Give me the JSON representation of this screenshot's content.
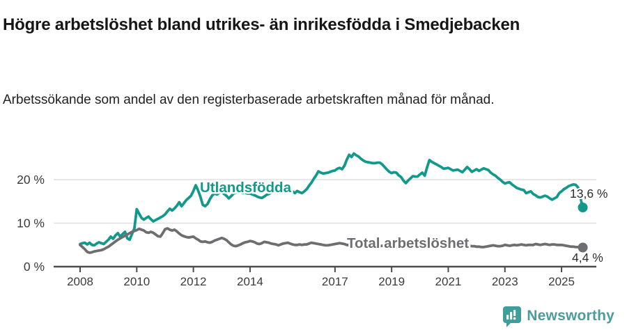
{
  "header": {
    "title": "Högre arbetslöshet bland utrikes- än inrikesfödda i Smedjebacken",
    "subtitle": "Arbetssökande som andel av den registerbaserade arbetskraften månad för månad."
  },
  "chart_data": {
    "type": "line",
    "title": "Högre arbetslöshet bland utrikes- än inrikesfödda i Smedjebacken",
    "subtitle": "Arbetssökande som andel av den registerbaserade arbetskraften månad för månad.",
    "x_unit": "month",
    "x_start": "2008-01",
    "x_end": "2025-10",
    "grid": "horizontal only",
    "legend_position": "inline labels on lines",
    "x_axis": {
      "tick_years": [
        2008,
        2010,
        2012,
        2014,
        2017,
        2019,
        2021,
        2023,
        2025
      ],
      "tick_labels": [
        "2008",
        "2010",
        "2012",
        "2014",
        "2017",
        "2019",
        "2021",
        "2023",
        "2025"
      ]
    },
    "y_axis": {
      "unit": "%",
      "ylim": [
        0,
        27.5
      ],
      "tick_values": [
        0,
        10,
        20
      ],
      "tick_labels": [
        "0 %",
        "10 %",
        "20 %"
      ],
      "gridline_values": [
        10,
        20
      ]
    },
    "series": [
      {
        "name": "Utlandsfödda",
        "color": "#12998c",
        "end_label": "13,6 %",
        "end_value": 13.6,
        "values": [
          5.2,
          5.4,
          5.5,
          5.1,
          5.5,
          5.0,
          4.9,
          5.3,
          5.6,
          5.4,
          5.2,
          5.7,
          6.2,
          6.9,
          6.4,
          7.2,
          7.7,
          6.9,
          7.5,
          8.0,
          6.5,
          6.2,
          7.5,
          8.8,
          13.2,
          12.2,
          11.2,
          10.8,
          11.2,
          11.5,
          10.9,
          10.4,
          10.7,
          11.0,
          11.3,
          11.6,
          12.0,
          12.7,
          13.3,
          12.9,
          13.4,
          14.0,
          14.8,
          13.9,
          14.6,
          15.3,
          15.8,
          16.3,
          17.4,
          18.7,
          17.5,
          16.0,
          14.2,
          13.9,
          14.4,
          15.5,
          16.4,
          16.8,
          16.6,
          17.0,
          17.1,
          16.7,
          16.3,
          15.7,
          16.2,
          16.8,
          17.0,
          17.3,
          17.1,
          16.9,
          17.0,
          16.8,
          16.8,
          16.6,
          16.4,
          16.1,
          15.9,
          15.8,
          16.1,
          16.5,
          16.7,
          17.0,
          17.1,
          17.2,
          17.3,
          17.6,
          17.9,
          17.5,
          17.2,
          17.6,
          17.3,
          16.9,
          17.4,
          17.1,
          16.9,
          17.3,
          17.8,
          18.6,
          19.3,
          20.2,
          21.0,
          21.9,
          21.6,
          21.4,
          21.5,
          21.6,
          21.8,
          22.0,
          22.1,
          22.5,
          22.7,
          22.4,
          23.2,
          24.6,
          25.7,
          25.2,
          26.0,
          25.6,
          25.3,
          24.8,
          24.4,
          24.1,
          24.0,
          23.9,
          23.8,
          23.8,
          23.9,
          23.9,
          23.5,
          22.9,
          22.3,
          21.8,
          21.5,
          21.7,
          21.6,
          21.0,
          20.6,
          19.8,
          19.2,
          19.8,
          20.3,
          20.8,
          20.7,
          20.7,
          21.2,
          21.6,
          20.9,
          22.8,
          24.5,
          24.1,
          23.8,
          23.5,
          23.2,
          22.9,
          22.5,
          22.6,
          22.7,
          22.4,
          22.1,
          22.2,
          22.3,
          22.0,
          21.7,
          22.3,
          22.9,
          22.4,
          21.8,
          22.1,
          22.4,
          22.0,
          22.3,
          22.6,
          22.4,
          22.2,
          21.6,
          21.2,
          20.9,
          20.4,
          20.0,
          19.5,
          19.1,
          19.3,
          19.4,
          18.9,
          18.5,
          18.1,
          17.9,
          17.7,
          17.6,
          16.9,
          17.1,
          17.3,
          16.7,
          16.4,
          16.0,
          15.9,
          16.1,
          16.3,
          16.1,
          15.7,
          15.4,
          15.7,
          16.0,
          16.9,
          17.3,
          17.8,
          18.1,
          18.5,
          18.7,
          18.9,
          18.8,
          18.2,
          15.9,
          13.6
        ]
      },
      {
        "name": "Total arbetslöshet",
        "color": "#6e6d72",
        "end_label": "4,4 %",
        "end_value": 4.4,
        "values": [
          5.0,
          4.5,
          4.0,
          3.4,
          3.2,
          3.3,
          3.5,
          3.6,
          3.7,
          3.8,
          4.0,
          4.3,
          4.6,
          5.0,
          5.4,
          5.8,
          6.2,
          6.5,
          6.8,
          7.1,
          7.4,
          7.7,
          8.0,
          8.2,
          8.4,
          8.7,
          8.5,
          8.3,
          7.9,
          7.8,
          8.0,
          7.8,
          7.4,
          7.0,
          6.9,
          7.7,
          8.6,
          8.8,
          8.5,
          8.3,
          8.5,
          8.1,
          7.6,
          7.2,
          7.0,
          6.8,
          6.7,
          6.8,
          6.9,
          6.5,
          6.2,
          5.8,
          5.7,
          5.8,
          5.6,
          5.5,
          5.7,
          6.0,
          6.2,
          6.4,
          6.6,
          6.4,
          6.1,
          5.6,
          5.1,
          4.8,
          4.7,
          4.9,
          5.1,
          5.4,
          5.6,
          5.7,
          5.9,
          5.8,
          5.6,
          5.3,
          5.2,
          5.4,
          5.7,
          5.6,
          5.5,
          5.3,
          5.2,
          5.1,
          4.9,
          5.1,
          5.3,
          5.4,
          5.5,
          5.3,
          5.1,
          5.0,
          5.0,
          5.1,
          5.0,
          5.1,
          5.1,
          5.3,
          5.5,
          5.4,
          5.3,
          5.2,
          5.1,
          5.0,
          4.9,
          4.9,
          5.0,
          5.1,
          5.2,
          5.3,
          5.4,
          5.3,
          5.2,
          5.0,
          4.9,
          4.8,
          4.7,
          4.8,
          4.9,
          4.9,
          5.0,
          4.9,
          4.8,
          4.7,
          4.6,
          4.6,
          4.7,
          4.7,
          4.8,
          4.8,
          4.7,
          4.7,
          4.7,
          4.6,
          4.5,
          4.4,
          4.4,
          4.5,
          4.6,
          4.6,
          4.7,
          4.7,
          4.8,
          4.8,
          4.8,
          4.9,
          5.2,
          5.4,
          5.4,
          5.3,
          5.2,
          5.1,
          5.1,
          5.0,
          5.0,
          5.1,
          5.1,
          5.1,
          5.0,
          4.9,
          4.8,
          4.8,
          4.8,
          4.9,
          4.9,
          4.8,
          4.7,
          4.7,
          4.6,
          4.6,
          4.5,
          4.5,
          4.6,
          4.7,
          4.8,
          4.9,
          4.8,
          4.7,
          4.7,
          4.8,
          5.0,
          4.9,
          4.8,
          4.9,
          5.0,
          4.9,
          5.0,
          5.1,
          5.0,
          4.9,
          5.0,
          5.0,
          5.0,
          5.2,
          5.1,
          5.0,
          5.1,
          5.2,
          5.1,
          5.0,
          5.1,
          5.1,
          5.0,
          5.0,
          5.0,
          4.9,
          4.8,
          4.7,
          4.6,
          4.6,
          4.5,
          4.5,
          4.4,
          4.4
        ]
      }
    ]
  },
  "colors": {
    "background": "#ffffff",
    "axis": "#4a4a4a",
    "gridline": "#dfdfdf",
    "tick_label": "#3a3a3a",
    "end_label_text": "#2d2d2d",
    "series_teal": "#12998c",
    "series_gray": "#6e6d72"
  },
  "footer": {
    "logo_text": "Newsworthy",
    "logo_icon": "newsworthy-speech-bubble-chart-icon",
    "logo_text_color": "#4d9c9c",
    "logo_icon_color": "#3f9d9a"
  }
}
